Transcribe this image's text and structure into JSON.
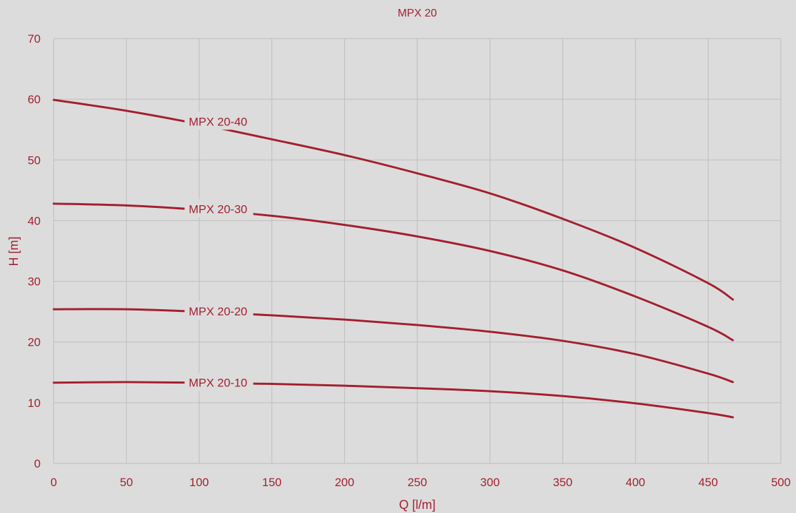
{
  "chart_data": {
    "type": "line",
    "title": "MPX 20",
    "xlabel": "Q [l/m]",
    "ylabel": "H [m]",
    "xlim": [
      0,
      500
    ],
    "ylim": [
      0,
      70
    ],
    "xticks": [
      0,
      50,
      100,
      150,
      200,
      250,
      300,
      350,
      400,
      450,
      500
    ],
    "yticks": [
      0,
      10,
      20,
      30,
      40,
      50,
      60,
      70
    ],
    "grid": true,
    "colors": {
      "series": "#a31f2f",
      "text": "#a31f2f",
      "grid": "#bdbdbd",
      "background": "#dcdcdc"
    },
    "x": [
      0,
      50,
      100,
      150,
      200,
      250,
      300,
      350,
      400,
      450,
      467
    ],
    "series": [
      {
        "name": "MPX 20-40",
        "label_x": 90,
        "values": [
          59.9,
          58.1,
          55.9,
          53.4,
          50.8,
          47.8,
          44.5,
          40.3,
          35.5,
          29.7,
          27.0
        ]
      },
      {
        "name": "MPX 20-30",
        "label_x": 90,
        "values": [
          42.8,
          42.5,
          41.8,
          40.8,
          39.3,
          37.4,
          35.0,
          31.8,
          27.5,
          22.5,
          20.3
        ]
      },
      {
        "name": "MPX 20-20",
        "label_x": 90,
        "values": [
          25.4,
          25.4,
          25.0,
          24.4,
          23.7,
          22.8,
          21.7,
          20.2,
          18.0,
          14.8,
          13.4
        ]
      },
      {
        "name": "MPX 20-10",
        "label_x": 90,
        "values": [
          13.3,
          13.4,
          13.3,
          13.1,
          12.8,
          12.4,
          11.9,
          11.1,
          9.9,
          8.3,
          7.6
        ]
      }
    ]
  }
}
